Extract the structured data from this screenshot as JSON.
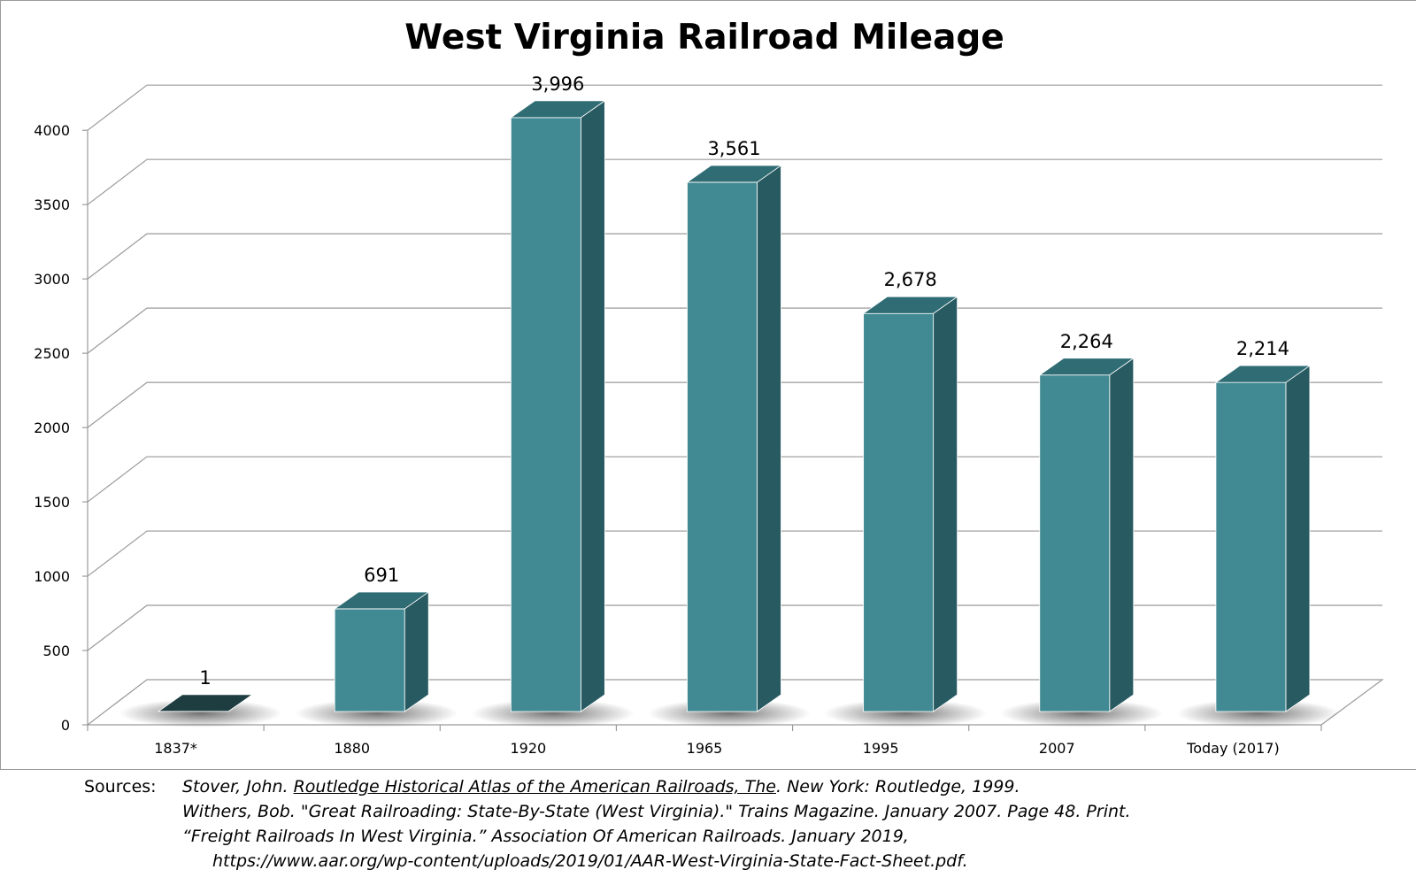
{
  "chart_data": {
    "type": "bar",
    "title": "West Virginia Railroad Mileage",
    "xlabel": "",
    "ylabel": "",
    "categories": [
      "1837*",
      "1880",
      "1920",
      "1965",
      "1995",
      "2007",
      "Today  (2017)"
    ],
    "values": [
      1,
      691,
      3996,
      3561,
      2678,
      2264,
      2214
    ],
    "data_labels": [
      "1",
      "691",
      "3,996",
      "3,561",
      "2,678",
      "2,264",
      "2,214"
    ],
    "ylim": [
      0,
      4000
    ],
    "yticks": [
      "0",
      "500",
      "1000",
      "1500",
      "2000",
      "2500",
      "3000",
      "3500",
      "4000"
    ],
    "grid": true,
    "legend": "none",
    "style": "3d-column",
    "colors": {
      "bar_front": "#418a93",
      "bar_side": "#285a61",
      "bar_top": "#2f6c74",
      "gridline": "#9a9a9a"
    }
  },
  "sources": {
    "label": "Sources:",
    "line1_pre": "Stover, John. ",
    "line1_title": "Routledge Historical Atlas of the American Railroads, The",
    "line1_post": ". New York: Routledge, 1999.",
    "line2": "Withers, Bob. \"Great Railroading: State-By-State (West Virginia).\" Trains Magazine. January 2007. Page 48. Print.",
    "line3": "“Freight Railroads In West Virginia.” Association Of American Railroads. January 2019,",
    "line4": "https://www.aar.org/wp-content/uploads/2019/01/AAR-West-Virginia-State-Fact-Sheet.pdf."
  }
}
